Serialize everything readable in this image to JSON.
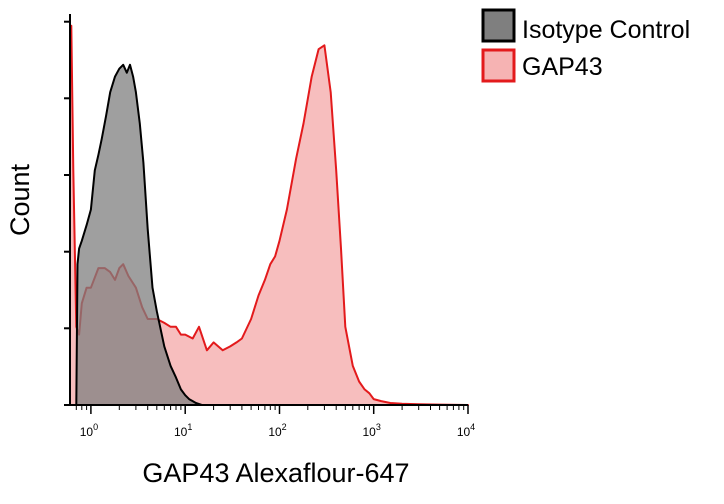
{
  "chart_data": {
    "type": "area",
    "title": "",
    "xlabel": "GAP43 Alexaflour-647",
    "ylabel": "Count",
    "x_scale": "log",
    "xlim": [
      0.6,
      10000
    ],
    "ylim": [
      0,
      100
    ],
    "x_ticks": [
      {
        "value": 1,
        "label": "10^0"
      },
      {
        "value": 10,
        "label": "10^1"
      },
      {
        "value": 100,
        "label": "10^2"
      },
      {
        "value": 1000,
        "label": "10^3"
      },
      {
        "value": 10000,
        "label": "10^4"
      }
    ],
    "legend_position": "top-right",
    "grid": false,
    "series": [
      {
        "name": "Isotype Control",
        "color": "#000000",
        "fill": "#7f7f7f",
        "x": [
          0.7,
          0.72,
          0.75,
          0.8,
          0.9,
          1.0,
          1.1,
          1.2,
          1.3,
          1.45,
          1.6,
          1.8,
          2.0,
          2.2,
          2.4,
          2.6,
          2.8,
          3.0,
          3.3,
          3.6,
          4.0,
          4.5,
          5.0,
          6.0,
          7.0,
          8.0,
          9.0,
          10.0,
          11.0,
          12.0,
          13.0,
          15.0
        ],
        "y": [
          0,
          36,
          40,
          42,
          46,
          50,
          60,
          64,
          68,
          74,
          80,
          84,
          86,
          87,
          85,
          87,
          84,
          80,
          72,
          62,
          45,
          30,
          24,
          15,
          10,
          7,
          4,
          2.5,
          1.5,
          1,
          0.5,
          0
        ]
      },
      {
        "name": "GAP43",
        "color": "#e31a1c",
        "fill": "#f6b3b3",
        "x": [
          0.6,
          0.62,
          0.65,
          0.7,
          0.75,
          0.8,
          0.9,
          1.0,
          1.2,
          1.4,
          1.6,
          1.8,
          2.0,
          2.2,
          2.5,
          3.0,
          3.5,
          4.0,
          5.0,
          6.0,
          7.0,
          8.0,
          9.0,
          10.0,
          12.0,
          14.0,
          17.0,
          20.0,
          25.0,
          30.0,
          35.0,
          40.0,
          50.0,
          60.0,
          70.0,
          80.0,
          90.0,
          100.0,
          120.0,
          150.0,
          180.0,
          220.0,
          260.0,
          300.0,
          350.0,
          400.0,
          450.0,
          500.0,
          600.0,
          700.0,
          800.0,
          900.0,
          1000.0,
          1200.0,
          1500.0,
          2000.0,
          3000.0,
          5000.0,
          10000.0
        ],
        "y": [
          85,
          97,
          60,
          20,
          18,
          26,
          30,
          30,
          35,
          35,
          34,
          32,
          35,
          36,
          33,
          30,
          25,
          22,
          22,
          21,
          20,
          20,
          18,
          18,
          17,
          20,
          14,
          16,
          14,
          15,
          16,
          17,
          22,
          28,
          32,
          36,
          38,
          42,
          50,
          63,
          72,
          84,
          91,
          92,
          80,
          60,
          40,
          20,
          10,
          6,
          4,
          3,
          1.5,
          1,
          0.5,
          0.3,
          0.2,
          0.1,
          0
        ]
      }
    ]
  }
}
